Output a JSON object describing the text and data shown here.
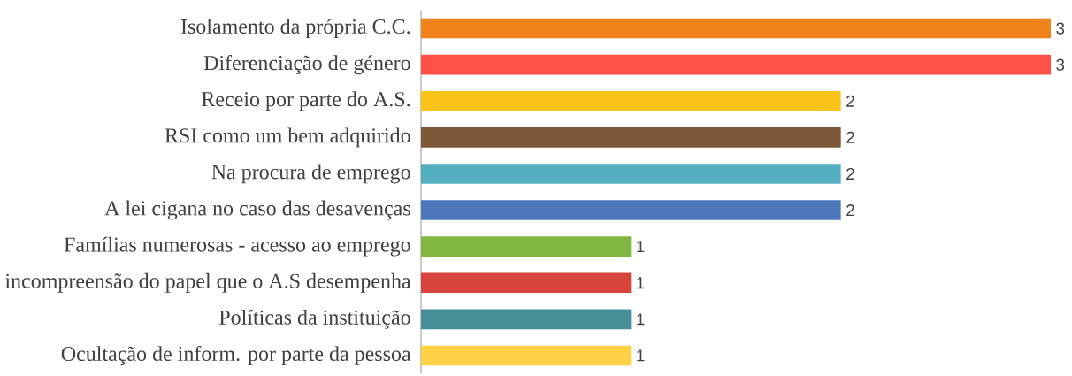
{
  "chart_data": {
    "type": "bar",
    "orientation": "horizontal",
    "categories": [
      "Isolamento da própria C.C.",
      "Diferenciação de género",
      "Receio por parte do A.S.",
      "RSI como um bem adquirido",
      "Na procura de emprego",
      "A lei cigana no caso das desavenças",
      "Famílias numerosas - acesso ao emprego",
      "incompreensão do papel que o A.S desempenha",
      "Políticas da instituição",
      "Ocultação de inform. por parte da pessoa"
    ],
    "values": [
      3,
      3,
      2,
      2,
      2,
      2,
      1,
      1,
      1,
      1
    ],
    "colors": [
      "#f0841a",
      "#fe5148",
      "#fbc318",
      "#7e5938",
      "#53aebd",
      "#4c77bb",
      "#80b642",
      "#d6443c",
      "#468f99",
      "#ffd147"
    ],
    "data_labels": true
  }
}
